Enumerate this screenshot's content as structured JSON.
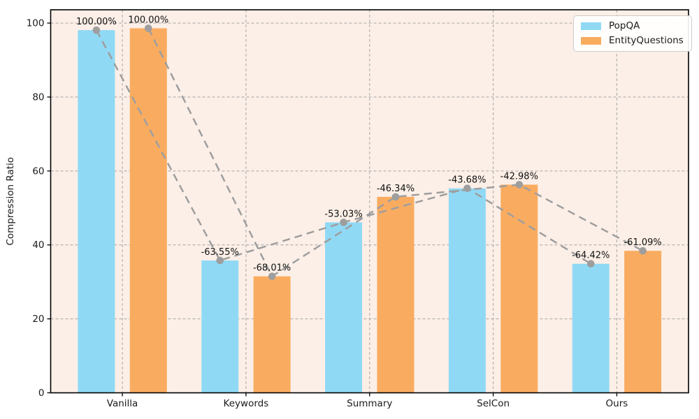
{
  "chart_data": {
    "type": "bar",
    "title": "",
    "ylabel": "Compression Ratio",
    "xlabel": "",
    "categories": [
      "Vanilla",
      "Keywords",
      "Summary",
      "SelCon",
      "Ours"
    ],
    "series": [
      {
        "name": "PopQA",
        "color": "#90d9f5",
        "values": [
          98.1,
          35.8,
          46.1,
          55.3,
          34.9
        ],
        "labels": [
          "100.00%",
          "-63.55%",
          "-53.03%",
          "-43.68%",
          "-64.42%"
        ]
      },
      {
        "name": "EntityQuestions",
        "color": "#f9ac60",
        "values": [
          98.6,
          31.5,
          53.0,
          56.3,
          38.4
        ],
        "labels": [
          "100.00%",
          "-68.01%",
          "-46.34%",
          "-42.98%",
          "-61.09%"
        ]
      }
    ],
    "yticks": [
      0,
      20,
      40,
      60,
      80,
      100
    ],
    "ylim": [
      0,
      103.6
    ],
    "grid": "dashed",
    "legend_position": "upper right",
    "colors": {
      "plot_background": "#fcefe7",
      "grid": "#aeaeae",
      "trend_line": "#9e9e9e",
      "marker": "#9e9e9e",
      "axes_border": "#000000"
    }
  }
}
